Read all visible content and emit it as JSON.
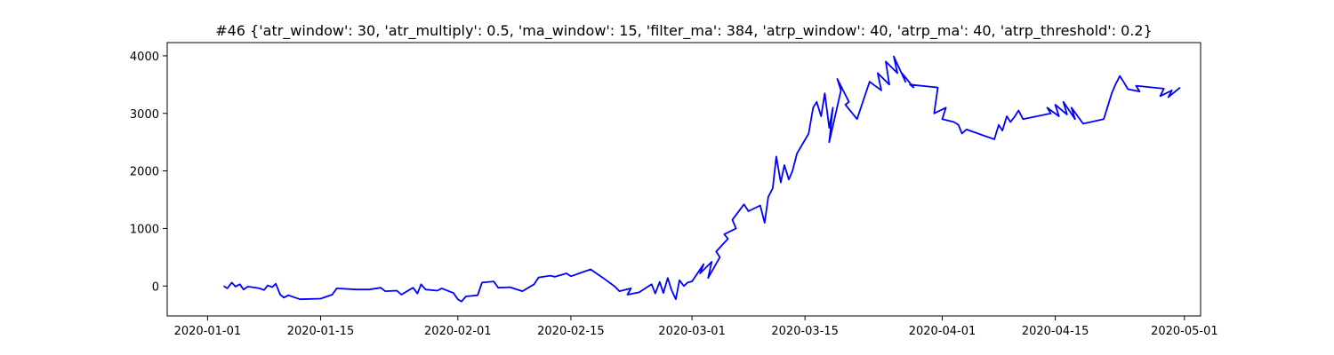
{
  "chart_data": {
    "type": "line",
    "title": "#46 {'atr_window': 30, 'atr_multiply': 0.5, 'ma_window': 15, 'filter_ma': 384, 'atrp_window': 40, 'atrp_ma': 40, 'atrp_threshold': 0.2}",
    "xlabel": "",
    "ylabel": "",
    "grid": false,
    "legend": "none",
    "x_axis_type": "date",
    "xlim": [
      "2019-12-27",
      "2020-05-03"
    ],
    "ylim": [
      -520,
      4230
    ],
    "x_ticks": [
      "2020-01-01",
      "2020-01-15",
      "2020-02-01",
      "2020-02-15",
      "2020-03-01",
      "2020-03-15",
      "2020-04-01",
      "2020-04-15",
      "2020-05-01"
    ],
    "y_ticks": [
      0,
      1000,
      2000,
      3000,
      4000
    ],
    "series": [
      {
        "color": "#0000ff",
        "x": [
          "2020-01-03",
          "2020-01-03",
          "2020-01-04",
          "2020-01-04",
          "2020-01-05",
          "2020-01-05",
          "2020-01-06",
          "2020-01-07",
          "2020-01-08",
          "2020-01-08",
          "2020-01-09",
          "2020-01-09",
          "2020-01-10",
          "2020-01-10",
          "2020-01-11",
          "2020-01-12",
          "2020-01-15",
          "2020-01-16",
          "2020-01-17",
          "2020-01-19",
          "2020-01-21",
          "2020-01-22",
          "2020-01-23",
          "2020-01-24",
          "2020-01-25",
          "2020-01-26",
          "2020-01-27",
          "2020-01-27",
          "2020-01-28",
          "2020-01-29",
          "2020-01-30",
          "2020-01-31",
          "2020-02-01",
          "2020-02-01",
          "2020-02-02",
          "2020-02-03",
          "2020-02-04",
          "2020-02-05",
          "2020-02-06",
          "2020-02-07",
          "2020-02-09",
          "2020-02-10",
          "2020-02-11",
          "2020-02-12",
          "2020-02-13",
          "2020-02-14",
          "2020-02-15",
          "2020-02-17",
          "2020-02-19",
          "2020-02-20",
          "2020-02-21",
          "2020-02-22",
          "2020-02-22",
          "2020-02-23",
          "2020-02-25",
          "2020-02-25",
          "2020-02-26",
          "2020-02-26",
          "2020-02-27",
          "2020-02-27",
          "2020-02-28",
          "2020-02-28",
          "2020-02-29",
          "2020-02-29",
          "2020-03-01",
          "2020-03-02",
          "2020-03-02",
          "2020-03-03",
          "2020-03-03",
          "2020-03-04",
          "2020-03-04",
          "2020-03-05",
          "2020-03-05",
          "2020-03-06",
          "2020-03-06",
          "2020-03-07",
          "2020-03-08",
          "2020-03-09",
          "2020-03-10",
          "2020-03-10",
          "2020-03-11",
          "2020-03-11",
          "2020-03-12",
          "2020-03-12",
          "2020-03-13",
          "2020-03-13",
          "2020-03-14",
          "2020-03-15",
          "2020-03-16",
          "2020-03-16",
          "2020-03-17",
          "2020-03-17",
          "2020-03-18",
          "2020-03-18",
          "2020-03-18",
          "2020-03-19",
          "2020-03-19",
          "2020-03-20",
          "2020-03-20",
          "2020-03-21",
          "2020-03-23",
          "2020-03-24",
          "2020-03-24",
          "2020-03-25",
          "2020-03-25",
          "2020-03-26",
          "2020-03-26",
          "2020-03-27",
          "2020-03-27",
          "2020-03-28",
          "2020-03-28",
          "2020-03-31",
          "2020-03-31",
          "2020-04-01",
          "2020-04-01",
          "2020-04-02",
          "2020-04-03",
          "2020-04-03",
          "2020-04-04",
          "2020-04-05",
          "2020-04-06",
          "2020-04-07",
          "2020-04-08",
          "2020-04-08",
          "2020-04-09",
          "2020-04-09",
          "2020-04-10",
          "2020-04-10",
          "2020-04-11",
          "2020-04-14",
          "2020-04-14",
          "2020-04-15",
          "2020-04-15",
          "2020-04-16",
          "2020-04-16",
          "2020-04-17",
          "2020-04-17",
          "2020-04-18",
          "2020-04-21",
          "2020-04-21",
          "2020-04-22",
          "2020-04-22",
          "2020-04-23",
          "2020-04-23",
          "2020-04-24",
          "2020-04-25",
          "2020-04-25",
          "2020-04-28",
          "2020-04-28",
          "2020-04-29",
          "2020-04-29",
          "2020-04-30"
        ],
        "y": [
          0,
          -40,
          60,
          -10,
          30,
          -60,
          -10,
          -40,
          -70,
          10,
          -20,
          40,
          -150,
          -200,
          -160,
          -230,
          -220,
          -150,
          -40,
          -60,
          -60,
          -30,
          -90,
          -80,
          -150,
          -30,
          -130,
          30,
          -60,
          -80,
          -40,
          -120,
          -230,
          -270,
          -180,
          -160,
          60,
          80,
          -30,
          -20,
          -90,
          30,
          150,
          180,
          160,
          220,
          170,
          290,
          140,
          -10,
          -90,
          -40,
          -150,
          -110,
          30,
          -130,
          70,
          -120,
          140,
          -60,
          -230,
          100,
          0,
          60,
          80,
          380,
          220,
          420,
          140,
          500,
          600,
          820,
          900,
          1000,
          1150,
          1420,
          1300,
          1400,
          1100,
          1550,
          1700,
          2250,
          1800,
          2100,
          1850,
          2000,
          2300,
          2650,
          3100,
          3200,
          2950,
          3350,
          2750,
          3100,
          2500,
          3400,
          3600,
          3200,
          3150,
          2900,
          3550,
          3400,
          3700,
          3500,
          3900,
          3700,
          3990,
          3550,
          3700,
          3450,
          3500,
          3450,
          3000,
          3100,
          2900,
          2850,
          2800,
          2650,
          2720,
          2650,
          2620,
          2550,
          2800,
          2700,
          2950,
          2850,
          2950,
          3050,
          2900,
          3000,
          3100,
          2950,
          3150,
          2980,
          3200,
          2900,
          3100,
          2820,
          2900,
          3100,
          3350,
          3500,
          3650,
          3550,
          3420,
          3380,
          3480,
          3430,
          3300,
          3400,
          3280,
          3450
        ]
      }
    ]
  }
}
